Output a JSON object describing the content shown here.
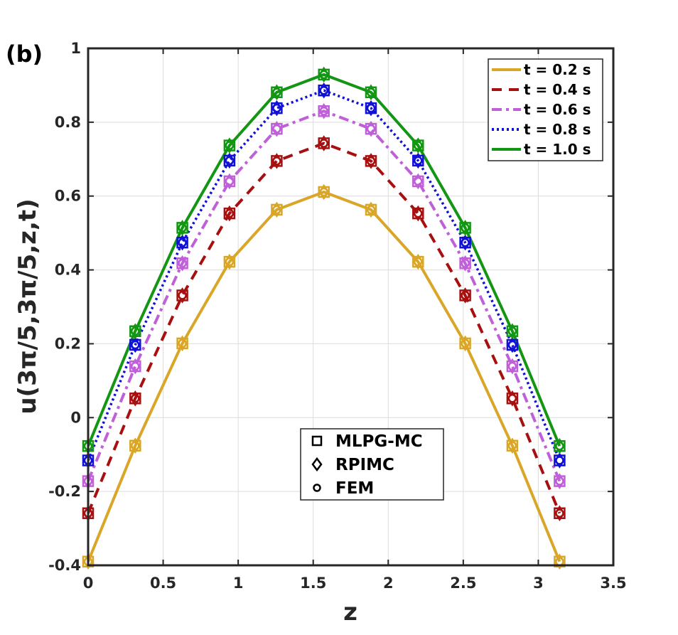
{
  "panel_label": "(b)",
  "chart_data": {
    "type": "line",
    "title": "",
    "xlabel": "z",
    "ylabel": "u(3π/5,3π/5,z,t)",
    "xlim": [
      0,
      3.5
    ],
    "ylim": [
      -0.4,
      1
    ],
    "xticks": [
      0,
      0.5,
      1,
      1.5,
      2,
      2.5,
      3,
      3.5
    ],
    "xtick_labels": [
      "0",
      "0.5",
      "1",
      "1.5",
      "2",
      "2.5",
      "3",
      "3.5"
    ],
    "yticks": [
      -0.4,
      -0.2,
      0,
      0.2,
      0.4,
      0.6,
      0.8,
      1
    ],
    "ytick_labels": [
      "-0.4",
      "-0.2",
      "0",
      "0.2",
      "0.4",
      "0.6",
      "0.8",
      "1"
    ],
    "grid": true,
    "x": [
      0,
      0.314,
      0.628,
      0.942,
      1.257,
      1.571,
      1.885,
      2.199,
      2.513,
      2.827,
      3.142
    ],
    "series": [
      {
        "name": "t = 0.2 s",
        "color": "#D9A628",
        "dash": "solid",
        "values": [
          -0.39,
          -0.076,
          0.201,
          0.422,
          0.563,
          0.611,
          0.563,
          0.422,
          0.201,
          -0.076,
          -0.39
        ]
      },
      {
        "name": "t = 0.4 s",
        "color": "#A81010",
        "dash": "dashed",
        "values": [
          -0.259,
          0.052,
          0.331,
          0.553,
          0.695,
          0.743,
          0.695,
          0.553,
          0.331,
          0.052,
          -0.259
        ]
      },
      {
        "name": "t = 0.6 s",
        "color": "#C060D8",
        "dash": "dashdot",
        "values": [
          -0.172,
          0.139,
          0.418,
          0.64,
          0.782,
          0.83,
          0.782,
          0.64,
          0.418,
          0.139,
          -0.172
        ]
      },
      {
        "name": "t = 0.8 s",
        "color": "#1010D8",
        "dash": "dotted",
        "values": [
          -0.116,
          0.197,
          0.474,
          0.696,
          0.838,
          0.886,
          0.838,
          0.696,
          0.474,
          0.197,
          -0.116
        ]
      },
      {
        "name": "t = 1.0 s",
        "color": "#139613",
        "dash": "solid",
        "values": [
          -0.077,
          0.234,
          0.514,
          0.737,
          0.881,
          0.929,
          0.881,
          0.737,
          0.514,
          0.234,
          -0.077
        ]
      }
    ],
    "marker_legend": [
      "MLPG-MC",
      "RPIMC",
      "FEM"
    ],
    "legend_position": "top-right",
    "marker_legend_position": "bottom-center"
  }
}
